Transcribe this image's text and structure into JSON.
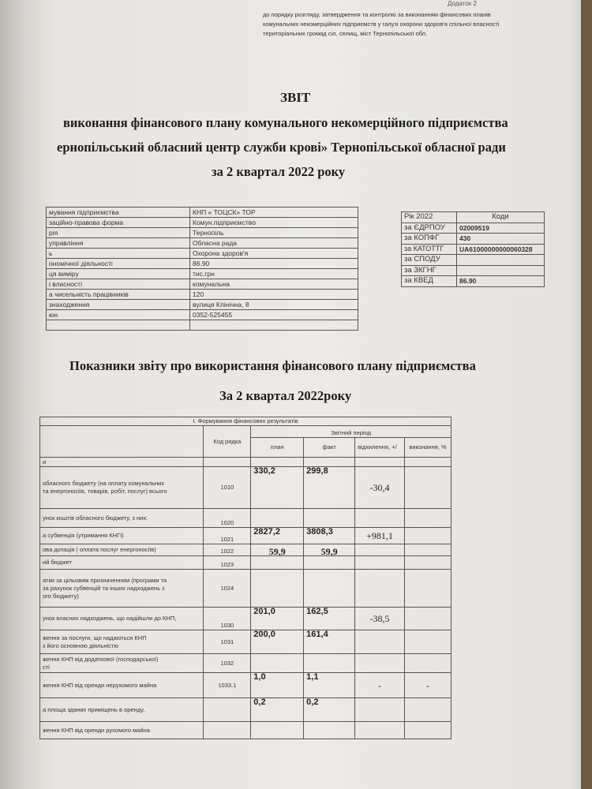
{
  "header": {
    "annex": "Додаток 2",
    "lines": [
      "до порядку розгляду, затвердження та контролю за  виконанням фінансових планів",
      "комунальних некомерційних підприємств у галузі охорони здоров'я спільної власності",
      "територіальних громад сіл, селищ, міст Тернопільської обл."
    ]
  },
  "title": {
    "l1": "ЗВІТ",
    "l2": "виконання фінансового плану комунального некомерційного підприємства",
    "l3": "ернопільський обласний центр служби крові» Тернопільської обласної ради",
    "l4": "за  2 квартал 2022 року"
  },
  "info": [
    [
      "мування підприємства",
      "КНП « ТОЦСК» ТОР"
    ],
    [
      "заційно-правова форма",
      "Комун.підприємство"
    ],
    [
      "рія",
      "Тернопіль"
    ],
    [
      "управління",
      "Обласна рада"
    ],
    [
      "ь",
      "Охорона здоров'я"
    ],
    [
      "ономічної діяльності",
      "86.90"
    ],
    [
      "ця виміру",
      "тис.грн"
    ],
    [
      "і власності",
      "комунальна"
    ],
    [
      "а чисельність працівників",
      "120"
    ],
    [
      "знаходження",
      "вулиця Клінічна, 8"
    ],
    [
      "юн",
      "0352-525455"
    ],
    [
      "",
      ""
    ]
  ],
  "codes": {
    "header": [
      "Рік 2022",
      "Коди"
    ],
    "rows": [
      [
        "за ЄДРПОУ",
        "02009519"
      ],
      [
        "за КОПФГ",
        "430"
      ],
      [
        "за КАТОТТГ",
        "UA61000000000060328"
      ],
      [
        "за СПОДУ",
        ""
      ],
      [
        "за ЗКГНГ",
        ""
      ],
      [
        "за КВЕД",
        "86.90"
      ]
    ]
  },
  "section": {
    "title": "Показники звіту про використання фінансового плану підприємства",
    "period": "За 2 квартал 2022року"
  },
  "table": {
    "section_title": "І. Формування фінансових результатів",
    "code_header": "Код рядка",
    "period_header": "Звітний період",
    "cols": [
      "план",
      "факт",
      "відхилення, +/",
      "виконання, %"
    ],
    "rows": [
      {
        "label": "и",
        "code": "",
        "plan": "",
        "fact": "",
        "dev": "",
        "pct": ""
      },
      {
        "label": "обласного бюджету (на оплату комунальних\nта енергоносіїв, товарів, робіт, послуг) всього",
        "code": "1010",
        "plan": "330,2",
        "fact": "299,8",
        "dev": "-30,4",
        "pct": ""
      },
      {
        "label": "унок коштів обласного бюджету, з них:",
        "code": "1020",
        "plan": "",
        "fact": "",
        "dev": "",
        "pct": ""
      },
      {
        "label": "а субвенція (утримання КНГІ)",
        "code": "1021",
        "plan": "2827,2",
        "fact": "3808,3",
        "dev": "+981,1",
        "pct": ""
      },
      {
        "label": "ова дотація ( оплата послуг енергоносіїв)",
        "code": "1022",
        "plan": "59,9",
        "fact": "59,9",
        "dev": "",
        "pct": ""
      },
      {
        "label": "ий бюджет",
        "code": "1023",
        "plan": "",
        "fact": "",
        "dev": "",
        "pct": ""
      },
      {
        "label": "атки за цільовим призначенням (програми та\nза рахунок субвенцій та інших надходжень з\nого бюджету)",
        "code": "1024",
        "plan": "",
        "fact": "",
        "dev": "",
        "pct": ""
      },
      {
        "label": "унок власних надходжень, що надійшли до КНП,",
        "code": "1030",
        "plan": "201,0",
        "fact": "162,5",
        "dev": "-38,5",
        "pct": ""
      },
      {
        "label": "ження за послуги, що надаються КНП\nз його основною діяльністю",
        "code": "1031",
        "plan": "200,0",
        "fact": "161,4",
        "dev": "",
        "pct": ""
      },
      {
        "label": "ження КНП від додаткової (господарської)\nсті",
        "code": "1032",
        "plan": "",
        "fact": "",
        "dev": "",
        "pct": ""
      },
      {
        "label": "ження КНП від оренди нерухомого майна",
        "code": "1033.1",
        "plan": "1,0",
        "fact": "1,1",
        "dev": "-",
        "pct": "-"
      },
      {
        "label": "а площа зданих приміщень в оренду,",
        "code": "",
        "plan": "0,2",
        "fact": "0,2",
        "dev": "",
        "pct": ""
      },
      {
        "label": "ження КНП від оренди рухомого майна",
        "code": "",
        "plan": "",
        "fact": "",
        "dev": "",
        "pct": ""
      }
    ]
  }
}
